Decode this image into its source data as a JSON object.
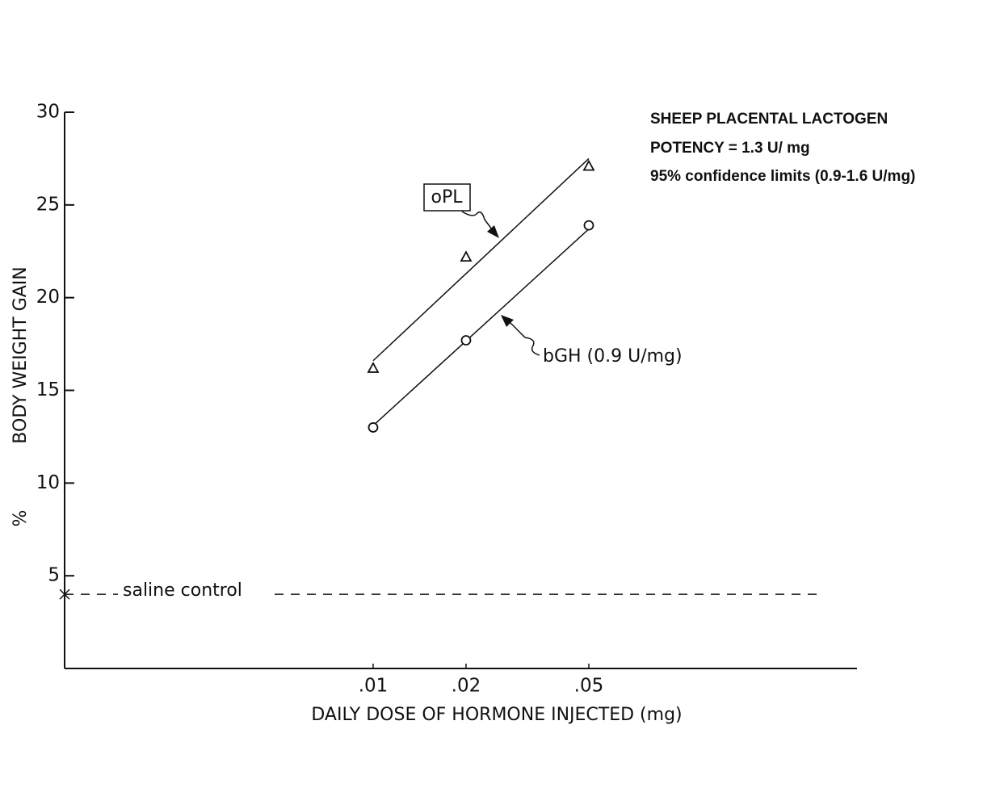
{
  "chart_data": {
    "type": "line",
    "x_scale": "log",
    "x_label": "DAILY DOSE OF HORMONE INJECTED (mg)",
    "y_label": "BODY WEIGHT GAIN",
    "y_unit": "%",
    "xlim": [
      0.001,
      0.37
    ],
    "ylim": [
      0,
      30
    ],
    "xticks": [
      {
        "value": 0.01,
        "label": ".01"
      },
      {
        "value": 0.02,
        "label": ".02"
      },
      {
        "value": 0.05,
        "label": ".05"
      }
    ],
    "yticks": [
      5,
      10,
      15,
      20,
      25,
      30
    ],
    "annotations": [
      "SHEEP PLACENTAL LACTOGEN",
      "POTENCY = 1.3 U/ mg",
      "95% confidence limits (0.9-1.6 U/mg)"
    ],
    "reference": {
      "label": "saline control",
      "value": 4,
      "x": [
        0.001,
        0.28
      ]
    },
    "series": [
      {
        "name": "oPL",
        "marker": "triangle",
        "color": "#111",
        "x": [
          0.01,
          0.02,
          0.05
        ],
        "values": [
          16.2,
          22.2,
          27.1
        ],
        "fit_x": [
          0.01,
          0.05
        ],
        "fit_values": [
          16.6,
          27.5
        ]
      },
      {
        "name": "bGH (0.9 U/mg)",
        "marker": "circle",
        "color": "#111",
        "x": [
          0.01,
          0.02,
          0.05
        ],
        "values": [
          13.0,
          17.7,
          23.9
        ],
        "fit_x": [
          0.01,
          0.05
        ],
        "fit_values": [
          13.1,
          23.7
        ]
      }
    ]
  }
}
